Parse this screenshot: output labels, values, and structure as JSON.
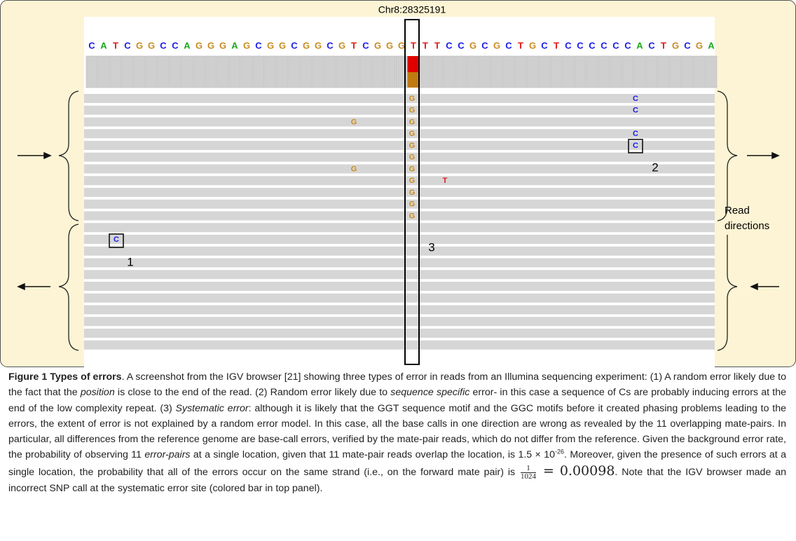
{
  "figure": {
    "locus": "Chr8:28325191",
    "reference_bases": [
      "C",
      "A",
      "T",
      "C",
      "G",
      "G",
      "C",
      "C",
      "A",
      "G",
      "G",
      "G",
      "A",
      "G",
      "C",
      "G",
      "G",
      "C",
      "G",
      "G",
      "C",
      "G",
      "T",
      "C",
      "G",
      "G",
      "G",
      "T",
      "T",
      "T",
      "C",
      "C",
      "G",
      "C",
      "G",
      "C",
      "T",
      "G",
      "C",
      "T",
      "C",
      "C",
      "C",
      "C",
      "C",
      "C",
      "A",
      "C",
      "T",
      "G",
      "C",
      "G",
      "A"
    ],
    "mismatch_bases": [
      "G",
      "G",
      "G",
      "G",
      "G",
      "G",
      "G",
      "G",
      "G",
      "G",
      "G",
      "G",
      "G",
      "T",
      "C",
      "C",
      "C",
      "C",
      "C"
    ],
    "labels": [
      "1",
      "2",
      "3"
    ],
    "direction_label": [
      "Read",
      "directions"
    ],
    "base_colors": {
      "A": "#1aa81a",
      "C": "#1a1aee",
      "G": "#c98a1e",
      "T": "#e01818"
    }
  },
  "caption": {
    "parts": [
      "Figure 1 Types of errors",
      ". A screenshot from the IGV browser [21] showing three types of error in reads from an Illumina sequencing experiment: (1) A random error likely due to the fact that the ",
      "position",
      " is close to the end of the read. (2) Random error likely due to ",
      "sequence specific",
      " error- in this case a sequence of Cs are probably inducing errors at the end of the low complexity repeat. (3) ",
      "Systematic error",
      ": although it is likely that the GGT sequence motif and the GGC motifs before it created phasing problems leading to the errors, the extent of error is not explained by a random error model. In this case, all the base calls in one direction are wrong as revealed by the 11 overlapping mate-pairs. In particular, all differences from the reference genome are base-call errors, verified by the mate-pair reads, which do not differ from the reference. Given the background error rate, the probability of observing 11 ",
      "error-pairs",
      " at a single location, given that 11 mate-pair reads overlap the location, is 1.5 × 10",
      "-26",
      ". Moreover, given the presence of such errors at a single location, the probability that all of the errors occur on the same strand (i.e., on the forward mate pair) is ",
      "1",
      "1024",
      " = 0.00098",
      ". Note that the IGV browser made an incorrect SNP call at the systematic error site (colored bar in top panel)."
    ]
  }
}
